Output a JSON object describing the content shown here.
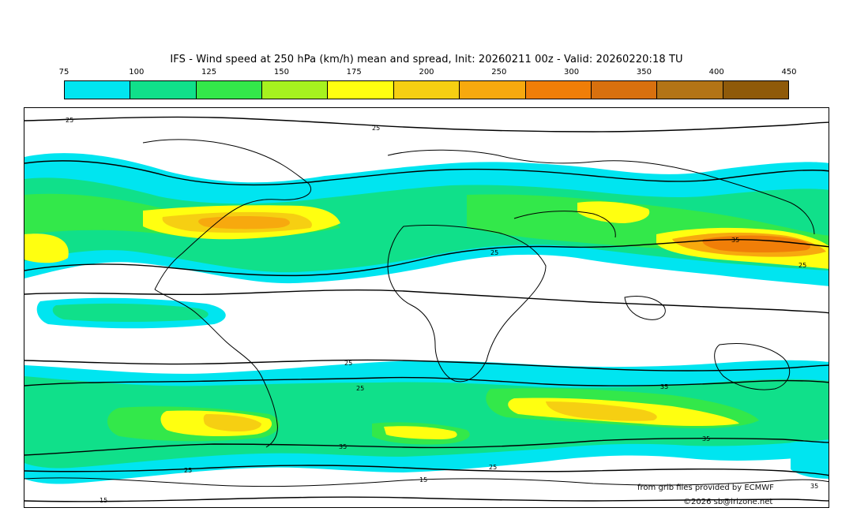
{
  "title": "IFS - Wind speed at 250 hPa (km/h) mean and spread, Init: 20260211 00z - Valid: 20260220:18 TU",
  "scale": {
    "ticks": [
      "75",
      "100",
      "125",
      "150",
      "175",
      "200",
      "250",
      "300",
      "350",
      "400",
      "450"
    ],
    "colors": [
      "#00e5f0",
      "#10e08a",
      "#33e84a",
      "#a6f21f",
      "#ffff10",
      "#f6cf12",
      "#f7a90e",
      "#f07e08",
      "#d8700e",
      "#b37416",
      "#8f5a0a"
    ]
  },
  "contour_labels": [
    "25",
    "35",
    "15"
  ],
  "credits": {
    "source": "from grib files provided by ECMWF",
    "copyright": "©2026 sb@irizone.net"
  }
}
